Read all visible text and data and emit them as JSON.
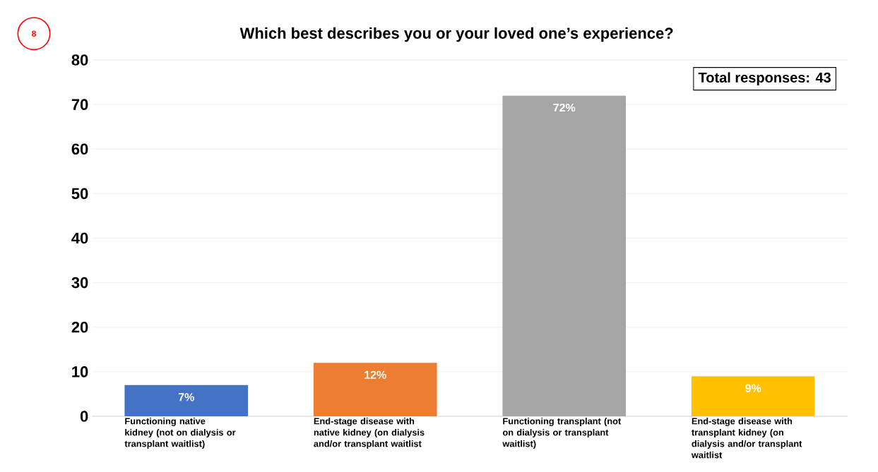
{
  "chart_data": {
    "type": "bar",
    "title": "Which best describes you or your loved one’s experience?",
    "categories": [
      "Functioning native kidney (not on dialysis or transplant waitlist)",
      "End-stage disease with native kidney (on dialysis and/or transplant waitlist",
      "Functioning transplant (not on dialysis or transplant waitlist)",
      "End-stage disease with transplant kidney (on dialysis and/or transplant waitlist"
    ],
    "values": [
      7,
      12,
      72,
      9
    ],
    "colors": [
      "#4472c4",
      "#ed7d31",
      "#a5a5a5",
      "#ffc000"
    ],
    "value_labels": [
      "7%",
      "12%",
      "72%",
      "9%"
    ],
    "ylim": [
      0,
      80
    ],
    "yticks": [
      0,
      10,
      20,
      30,
      40,
      50,
      60,
      70,
      80
    ],
    "grid": "y",
    "annotations": [
      "Total responses: 43",
      "8"
    ]
  }
}
